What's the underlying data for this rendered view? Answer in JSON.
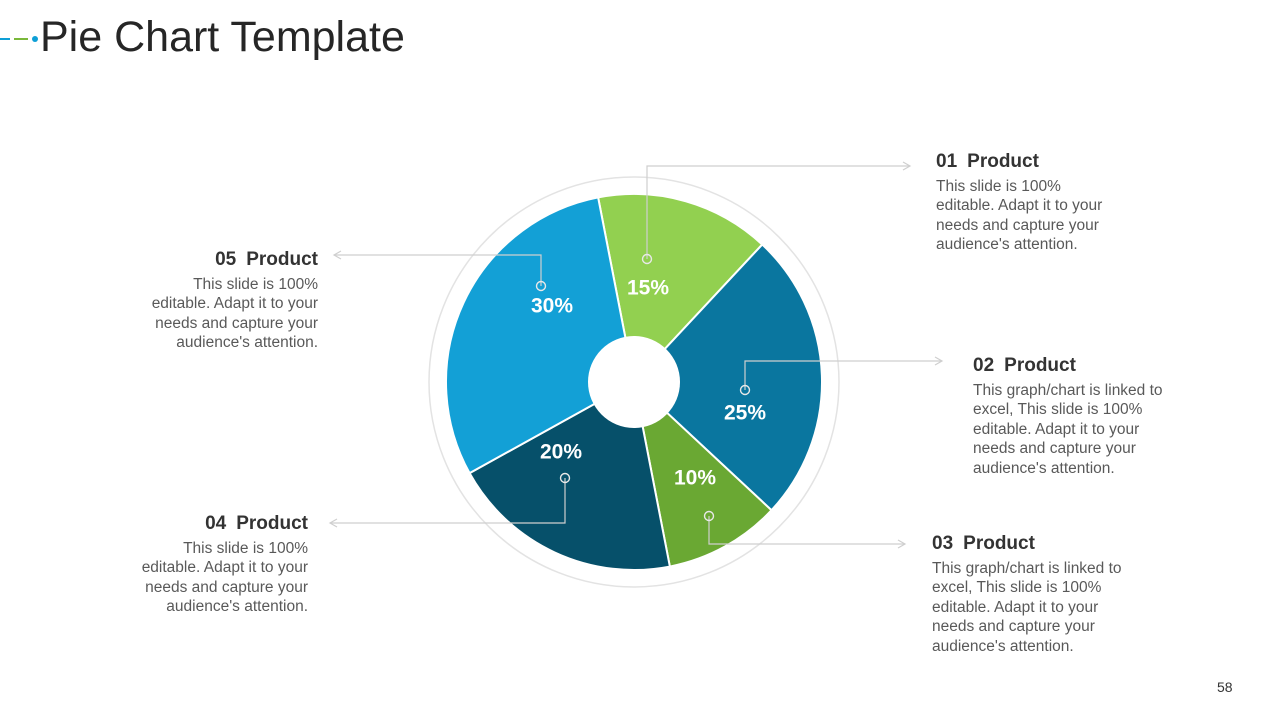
{
  "title": "Pie Chart Template",
  "page_number": "58",
  "colors": {
    "accent_blue": "#0E9FD6",
    "accent_green": "#7AB83A"
  },
  "chart_data": {
    "type": "pie",
    "variant": "donut",
    "categories": [
      "01 Product",
      "02 Product",
      "03 Product",
      "04 Product",
      "05 Product"
    ],
    "values": [
      15,
      25,
      10,
      20,
      30
    ],
    "value_labels": [
      "15%",
      "25%",
      "10%",
      "20%",
      "30%"
    ],
    "colors": [
      "#92D050",
      "#0A769F",
      "#6AA833",
      "#06506A",
      "#13A0D6"
    ],
    "start_angle_deg": -11,
    "grid": false,
    "legend": "none"
  },
  "callouts": [
    {
      "num": "01",
      "label": "Product",
      "text": "This slide is 100% editable. Adapt it to your needs and capture your audience's attention."
    },
    {
      "num": "02",
      "label": "Product",
      "text": "This graph/chart is linked to excel, This slide is 100% editable. Adapt it to your needs and capture your audience's attention."
    },
    {
      "num": "03",
      "label": "Product",
      "text": "This graph/chart is linked to excel, This slide is 100% editable. Adapt it to your needs and capture your audience's attention."
    },
    {
      "num": "04",
      "label": "Product",
      "text": "This slide is 100% editable. Adapt it to your needs and capture your audience's attention."
    },
    {
      "num": "05",
      "label": "Product",
      "text": "This slide is 100% editable. Adapt it to your needs and capture your audience's attention."
    }
  ]
}
